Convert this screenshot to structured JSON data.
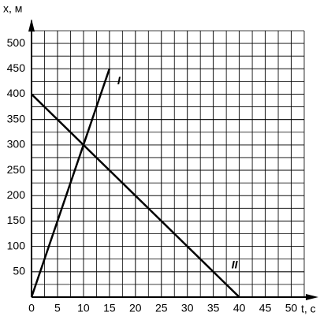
{
  "chart_data": {
    "type": "line",
    "x_label": "t, c",
    "y_label": "x, м",
    "series": [
      {
        "name": "I",
        "color": "#000000",
        "x": [
          0,
          15
        ],
        "values": [
          0,
          450
        ]
      },
      {
        "name": "II",
        "color": "#000000",
        "x": [
          0,
          40
        ],
        "values": [
          400,
          0
        ]
      }
    ],
    "xlim": [
      0,
      52.5
    ],
    "ylim": [
      0,
      525
    ],
    "xticks": [
      0,
      5,
      10,
      15,
      20,
      25,
      30,
      35,
      40,
      45,
      50
    ],
    "yticks": [
      50,
      100,
      150,
      200,
      250,
      300,
      350,
      400,
      450,
      500
    ],
    "grid": true
  }
}
